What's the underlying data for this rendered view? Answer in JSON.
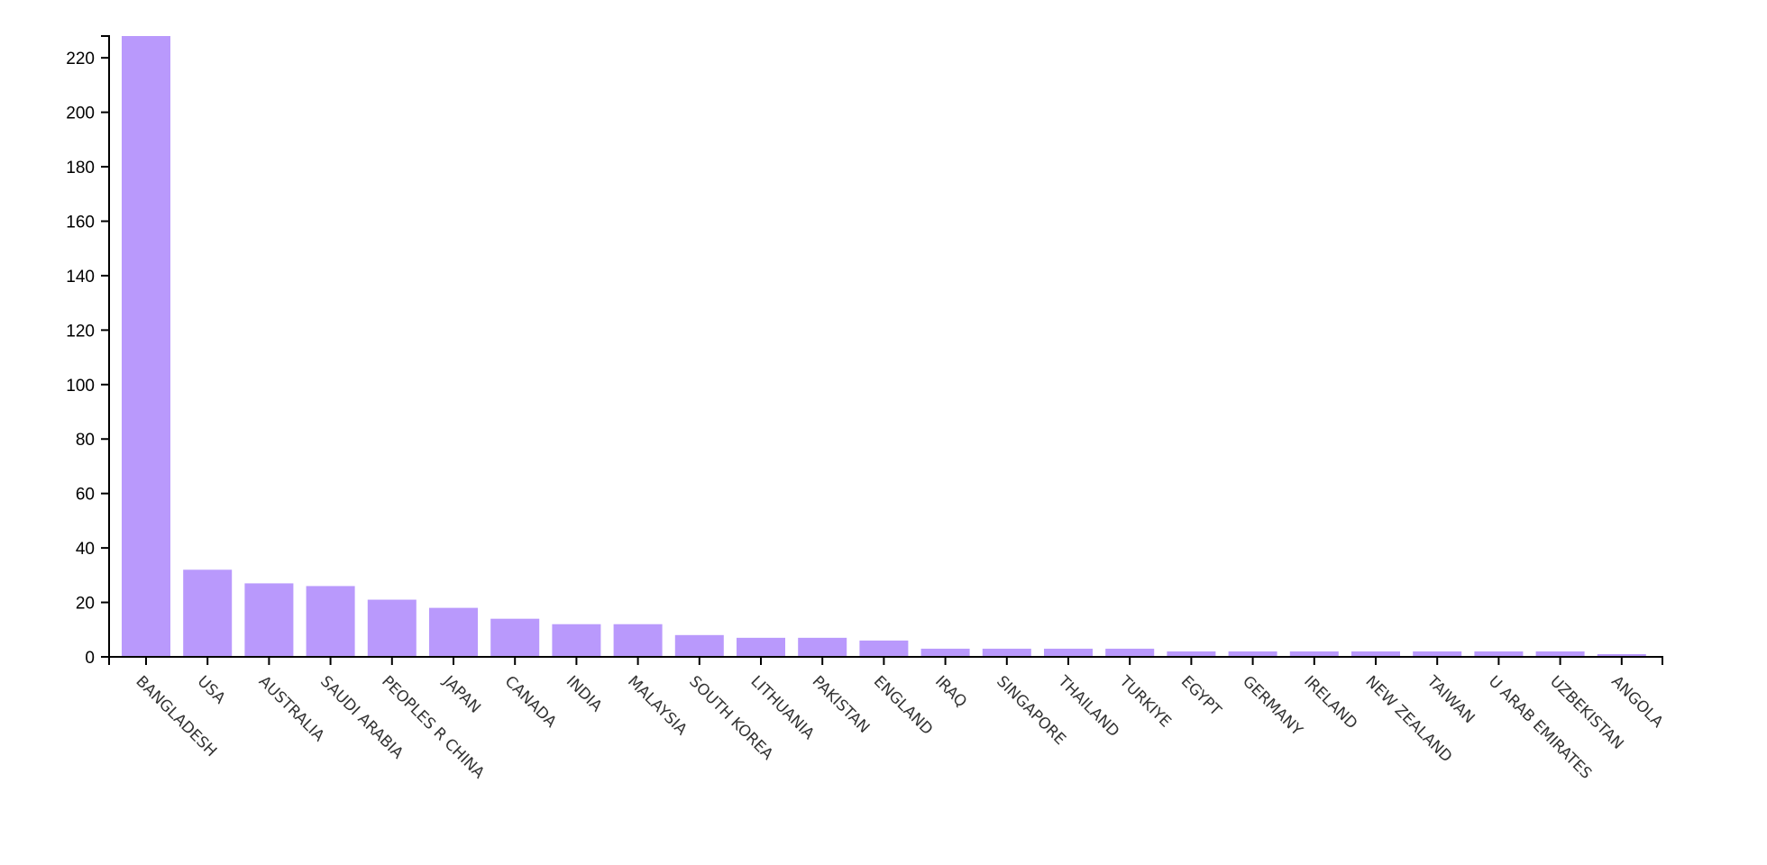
{
  "chart_data": {
    "type": "bar",
    "categories": [
      "BANGLADESH",
      "USA",
      "AUSTRALIA",
      "SAUDI ARABIA",
      "PEOPLES R CHINA",
      "JAPAN",
      "CANADA",
      "INDIA",
      "MALAYSIA",
      "SOUTH KOREA",
      "LITHUANIA",
      "PAKISTAN",
      "ENGLAND",
      "IRAQ",
      "SINGAPORE",
      "THAILAND",
      "TURKIYE",
      "EGYPT",
      "GERMANY",
      "IRELAND",
      "NEW ZEALAND",
      "TAIWAN",
      "U ARAB EMIRATES",
      "UZBEKISTAN",
      "ANGOLA"
    ],
    "values": [
      228,
      32,
      27,
      26,
      21,
      18,
      14,
      12,
      12,
      8,
      7,
      7,
      6,
      3,
      3,
      3,
      3,
      2,
      2,
      2,
      2,
      2,
      2,
      2,
      1
    ],
    "title": "",
    "xlabel": "",
    "ylabel": "",
    "ylim": [
      0,
      228
    ],
    "yticks": [
      0,
      20,
      40,
      60,
      80,
      100,
      120,
      140,
      160,
      180,
      200,
      220
    ],
    "bar_color": "#b999fc",
    "grid": false
  }
}
